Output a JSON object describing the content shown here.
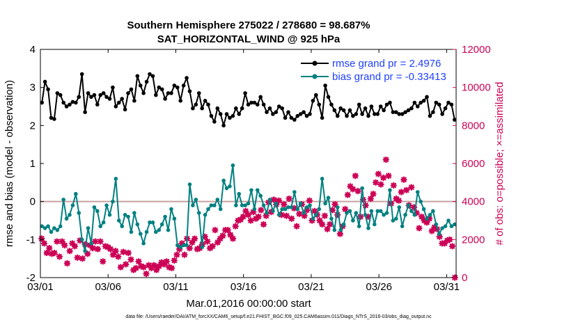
{
  "chart_data": {
    "type": "line",
    "title_line1": "Southern Hemisphere 275022 / 278680 = 98.687%",
    "title_line2": "SAT_HORIZONTAL_WIND @ 925 hPa",
    "xlabel": "Mar.01,2016 00:00:00 start",
    "ylabel_left": "rmse and bias (model - observation)",
    "ylabel_right": "# of obs: o=possible; ×=assimilated",
    "footer": "data file: /Users/raeder/DAI/ATM_forcXX/CAM6_setup/f.e21.FHIST_BGC.f09_025.CAM6assim.011/Diags_NTrS_2016-03/obs_diag_output.nc",
    "x_tick_labels": [
      "03/01",
      "03/06",
      "03/11",
      "03/16",
      "03/21",
      "03/26",
      "03/31"
    ],
    "x_tick_days": [
      1,
      6,
      11,
      16,
      21,
      26,
      31
    ],
    "xlim": [
      1,
      31.7
    ],
    "ylim_left": [
      -2,
      4
    ],
    "y_ticks_left": [
      "-2",
      "-1",
      "0",
      "1",
      "2",
      "3",
      "4"
    ],
    "ylim_right": [
      0,
      12000
    ],
    "y_ticks_right": [
      "0",
      "2000",
      "4000",
      "6000",
      "8000",
      "10000",
      "12000"
    ],
    "colors": {
      "rmse": "#000000",
      "bias": "#008080",
      "obs": "#cc0055",
      "zero_line": "#c8a0a0",
      "legend_text": "#1f3fff"
    },
    "series": [
      {
        "name": "rmse",
        "legend": "rmse grand pr = 2.4976",
        "axis": "left",
        "values": [
          2.6,
          3.15,
          2.95,
          2.2,
          2.17,
          2.85,
          2.8,
          2.6,
          2.5,
          2.55,
          2.62,
          2.6,
          2.75,
          3.35,
          2.35,
          2.85,
          2.75,
          2.8,
          2.55,
          2.8,
          2.85,
          2.75,
          2.7,
          3.0,
          2.5,
          2.6,
          2.7,
          2.42,
          2.85,
          2.95,
          2.65,
          3.3,
          3.05,
          2.85,
          3.15,
          3.35,
          3.3,
          2.8,
          3.0,
          2.95,
          2.7,
          2.85,
          2.85,
          3.05,
          3.0,
          2.65,
          3.05,
          3.25,
          2.9,
          2.45,
          2.55,
          2.85,
          2.45,
          2.65,
          2.55,
          2.25,
          2.1,
          2.45,
          2.3,
          2.0,
          2.3,
          2.2,
          2.25,
          2.45,
          2.3,
          2.45,
          2.85,
          2.55,
          2.6,
          2.6,
          2.55,
          2.75,
          2.55,
          2.35,
          2.45,
          2.3,
          2.35,
          2.5,
          2.45,
          2.2,
          2.35,
          2.2,
          2.15,
          2.25,
          2.3,
          2.35,
          2.25,
          2.3,
          2.65,
          2.8,
          2.55,
          2.2,
          3.05,
          2.75,
          2.55,
          2.4,
          2.25,
          2.45,
          2.4,
          2.25,
          2.4,
          2.25,
          2.3,
          2.55,
          2.3,
          2.45,
          2.25,
          2.5,
          2.3,
          2.3,
          2.5,
          2.4,
          2.55,
          2.6,
          2.35,
          2.35,
          2.3,
          2.3,
          2.35,
          2.4,
          2.45,
          2.6,
          2.5,
          2.6,
          2.65,
          2.75,
          2.25,
          2.35,
          2.6,
          2.55,
          2.3,
          2.45,
          2.6,
          2.55,
          2.15
        ]
      },
      {
        "name": "bias",
        "legend": "bias grand pr = -0.33413",
        "axis": "left",
        "values": [
          -0.65,
          -0.7,
          -0.65,
          -0.8,
          -0.7,
          -0.75,
          -0.65,
          0.05,
          -0.45,
          -0.35,
          -0.1,
          0.2,
          -0.3,
          -1.0,
          -1.3,
          -0.7,
          -1.1,
          -0.15,
          -0.25,
          -0.65,
          -0.55,
          -0.1,
          -0.35,
          0.0,
          0.6,
          -0.5,
          -0.65,
          -0.35,
          -0.4,
          -0.8,
          -0.3,
          -0.6,
          -0.85,
          -1.1,
          -0.8,
          -0.55,
          -0.55,
          -0.8,
          -0.75,
          -0.6,
          -0.4,
          -0.75,
          -0.2,
          -0.45,
          -1.15,
          -1.2,
          -1.15,
          -1.15,
          0.45,
          -0.1,
          0.05,
          -0.3,
          -1.2,
          -0.35,
          -0.2,
          -0.1,
          -0.1,
          0.05,
          -0.2,
          0.55,
          0.35,
          0.4,
          0.95,
          -0.1,
          0.2,
          -0.1,
          -0.1,
          -0.05,
          0.3,
          -0.2,
          0.3,
          0.15,
          -0.1,
          -0.3,
          0.05,
          -0.25,
          -0.05,
          -0.35,
          -0.2,
          -0.2,
          -0.15,
          -0.15,
          0.25,
          -0.2,
          -0.05,
          -0.3,
          -0.15,
          -0.1,
          -0.45,
          -0.35,
          -0.2,
          0.6,
          -0.05,
          0.1,
          -0.45,
          -0.75,
          -0.15,
          -0.75,
          -0.6,
          -0.3,
          -0.25,
          -0.5,
          -0.3,
          -0.65,
          0.35,
          -0.35,
          -0.7,
          -0.25,
          -0.6,
          -0.25,
          -0.25,
          -0.35,
          -0.3,
          0.3,
          -0.5,
          -0.45,
          -0.15,
          -0.65,
          -0.35,
          -0.1,
          -0.25,
          -0.35,
          0.25,
          0.0,
          -0.2,
          -0.45,
          -0.35,
          -0.25,
          -0.6,
          -0.85,
          -0.7,
          -0.65,
          -0.5,
          -0.65,
          -0.6
        ]
      },
      {
        "name": "obs_assimilated",
        "axis": "right",
        "values": [
          2050,
          1800,
          1300,
          1550,
          1250,
          1300,
          1900,
          1100,
          1900,
          1700,
          750,
          1400,
          1800,
          1650,
          1050,
          1950,
          1000,
          1750,
          1250,
          1700,
          1550,
          1900,
          1500,
          1900,
          850,
          1650,
          1600,
          1500,
          1200,
          1400,
          1100,
          550,
          1350,
          700,
          1300,
          950,
          400,
          500,
          850,
          600,
          550,
          200,
          650,
          500,
          650,
          400,
          600,
          800,
          700,
          850,
          550,
          500,
          900,
          1200,
          1500,
          1800,
          1200,
          2050,
          1550,
          1850,
          2050,
          1500,
          1550,
          1750,
          2150,
          1900,
          1550,
          1650,
          2500,
          1850,
          2050,
          2200,
          2500,
          2500,
          2250,
          2050,
          2700,
          3000,
          3050,
          3200,
          3500,
          3300,
          3000,
          3450,
          3100,
          3200,
          3550,
          2800,
          3250,
          3950,
          3450,
          4100,
          3850,
          4050,
          3300,
          3850,
          3250,
          4150,
          3100,
          3650,
          2700,
          3350,
          3850,
          3250,
          3550,
          4050,
          3000,
          3500,
          3300,
          3000,
          2800,
          3250,
          2550,
          2800,
          3550,
          3850,
          3300,
          2300,
          2700,
          3600,
          4350,
          4800,
          4650,
          5350,
          4550,
          3200,
          4100,
          3800,
          3200,
          4150,
          4400,
          5000,
          5450,
          4900,
          5250,
          6200,
          5350,
          3900,
          4850,
          4150,
          4050,
          4500,
          5150,
          4600,
          3800,
          4750,
          3700,
          3400,
          2600,
          3200,
          3000,
          2900,
          3100,
          2450,
          2650,
          2550,
          2150,
          1800,
          1800,
          1950,
          2000,
          1650,
          0
        ]
      }
    ]
  }
}
